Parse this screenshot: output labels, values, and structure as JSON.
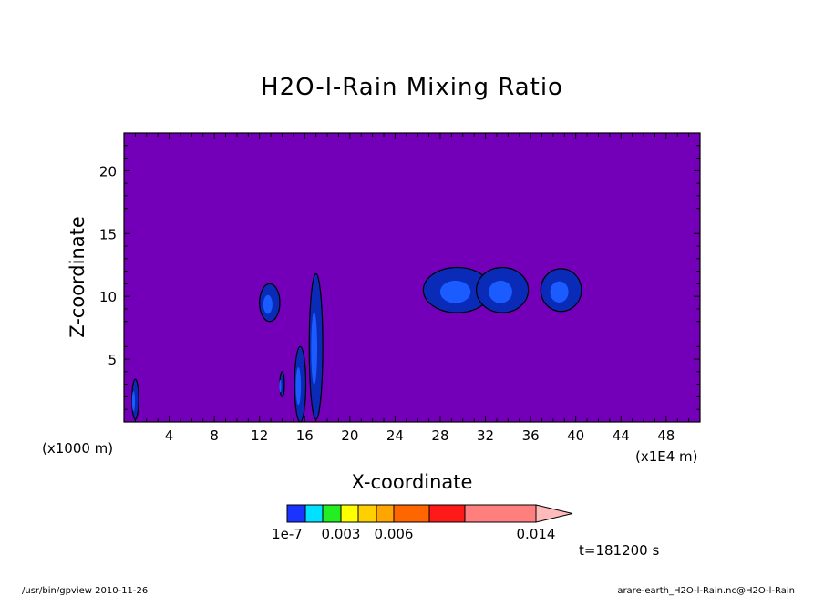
{
  "chart_data": {
    "type": "heatmap",
    "title": "H2O-l-Rain Mixing Ratio",
    "xlabel": "X-coordinate",
    "ylabel": "Z-coordinate",
    "x_unit": "(x1E4 m)",
    "z_unit": "(x1000 m)",
    "xlim": [
      0,
      51
    ],
    "ylim": [
      0,
      23
    ],
    "x_ticks": [
      4,
      8,
      12,
      16,
      20,
      24,
      28,
      32,
      36,
      40,
      44,
      48
    ],
    "y_ticks": [
      5,
      10,
      15,
      20
    ],
    "background_value": "below 1e-7",
    "colorbar": {
      "label_values": [
        "1e-7",
        "0.003",
        "0.006",
        "0.014"
      ],
      "colors": [
        "#1a33ff",
        "#00e0ff",
        "#22ee22",
        "#ffff00",
        "#ffd000",
        "#ffa500",
        "#ff6600",
        "#ff1a1a",
        "#ff7f7f",
        "#ffbbbb"
      ],
      "background_color": "#7300b8"
    },
    "rain_regions": [
      {
        "x_center": 1.0,
        "z_center": 1.8,
        "x_halfwidth": 0.3,
        "z_halfheight": 1.6,
        "level": "1e-7"
      },
      {
        "x_center": 12.9,
        "z_center": 9.5,
        "x_halfwidth": 0.9,
        "z_halfheight": 1.5,
        "level": "1e-7"
      },
      {
        "x_center": 14.0,
        "z_center": 3.0,
        "x_halfwidth": 0.2,
        "z_halfheight": 1.0,
        "level": "1e-7"
      },
      {
        "x_center": 15.6,
        "z_center": 3.0,
        "x_halfwidth": 0.5,
        "z_halfheight": 3.0,
        "level": "1e-7"
      },
      {
        "x_center": 17.0,
        "z_center": 6.0,
        "x_halfwidth": 0.6,
        "z_halfheight": 5.8,
        "level": "1e-7"
      },
      {
        "x_center": 29.5,
        "z_center": 10.5,
        "x_halfwidth": 3.0,
        "z_halfheight": 1.8,
        "level": "1e-7"
      },
      {
        "x_center": 33.5,
        "z_center": 10.5,
        "x_halfwidth": 2.3,
        "z_halfheight": 1.8,
        "level": "1e-7"
      },
      {
        "x_center": 38.7,
        "z_center": 10.5,
        "x_halfwidth": 1.8,
        "z_halfheight": 1.7,
        "level": "1e-7"
      }
    ]
  },
  "time_label": "t=181200 s",
  "footer": {
    "left": "/usr/bin/gpview  2010-11-26",
    "right": "arare-earth_H2O-l-Rain.nc@H2O-l-Rain"
  }
}
